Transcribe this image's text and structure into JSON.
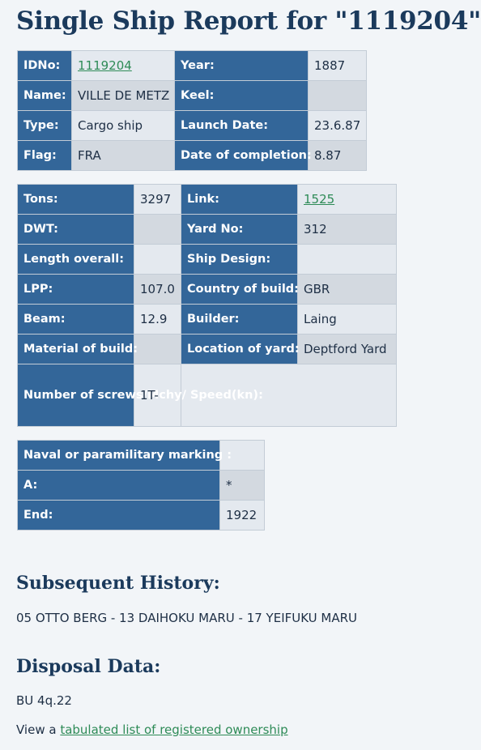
{
  "title": "Single Ship Report for \"1119204\"",
  "table1": {
    "idno_label": "IDNo:",
    "idno_value": "1119204",
    "year_label": "Year:",
    "year_value": "1887",
    "name_label": "Name:",
    "name_value": "VILLE DE METZ",
    "keel_label": "Keel:",
    "keel_value": "",
    "type_label": "Type:",
    "type_value": "Cargo ship",
    "launch_label": "Launch Date:",
    "launch_value": "23.6.87",
    "flag_label": "Flag:",
    "flag_value": "FRA",
    "completion_label": "Date of completion:",
    "completion_value": "8.87"
  },
  "table2": {
    "tons_label": "Tons:",
    "tons_value": "3297",
    "link_label": "Link:",
    "link_value": "1525",
    "dwt_label": "DWT:",
    "dwt_value": "",
    "yard_no_label": "Yard No:",
    "yard_no_value": "312",
    "length_label": "Length overall:",
    "length_value": "",
    "design_label": "Ship Design:",
    "design_value": "",
    "lpp_label": "LPP:",
    "lpp_value": "107.0",
    "country_label": "Country of build:",
    "country_value": "GBR",
    "beam_label": "Beam:",
    "beam_value": "12.9",
    "builder_label": "Builder:",
    "builder_value": "Laing",
    "material_label": "Material of build:",
    "material_value": "",
    "location_label": "Location of yard:",
    "location_value": "Deptford Yard",
    "screws_label": "Number of screws/Mchy/ Speed(kn):",
    "screws_value": "1T-"
  },
  "table3": {
    "naval_label": "Naval or paramilitary marking :",
    "naval_value": "",
    "a_label": "A:",
    "a_value": "*",
    "end_label": "End:",
    "end_value": "1922"
  },
  "history": {
    "heading": "Subsequent History:",
    "text": "05 OTTO BERG - 13 DAIHOKU MARU - 17 YEIFUKU MARU"
  },
  "disposal": {
    "heading": "Disposal Data:",
    "text": "BU 4q.22"
  },
  "ownership": {
    "prefix": "View a ",
    "link_text": "tabulated list of registered ownership"
  }
}
